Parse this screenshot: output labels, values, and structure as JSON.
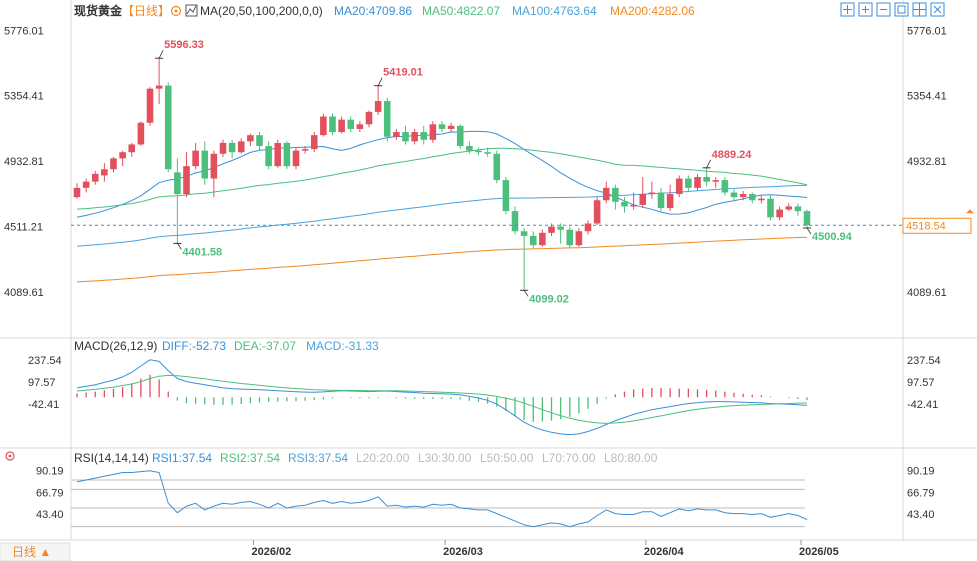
{
  "header": {
    "symbol": "现货黄金",
    "period_bracket": "【日线】",
    "ma_label": "MA(20,50,100,200,0,0)",
    "ma_values": [
      {
        "name": "MA20",
        "text": "MA20:4709.86",
        "color": "#3a8fd6"
      },
      {
        "name": "MA50",
        "text": "MA50:4822.07",
        "color": "#4cbf7d"
      },
      {
        "name": "MA100",
        "text": "MA100:4763.64",
        "color": "#4aa3df"
      },
      {
        "name": "MA200",
        "text": "MA200:4282.06",
        "color": "#f08a24"
      }
    ],
    "toolbar_icons": [
      "move-icon",
      "zoom-in-icon",
      "zoom-out-icon",
      "reset-icon",
      "settings-icon",
      "close-icon"
    ]
  },
  "colors": {
    "up": "#e2505c",
    "down": "#4cbf7d",
    "ma20": "#3a8fd6",
    "ma50": "#4cbf7d",
    "ma100": "#4aa3df",
    "ma200": "#f08a24",
    "diff": "#3a8fd6",
    "dea": "#4cbf7d",
    "price_tag": "#f08a24"
  },
  "chart_data": {
    "type": "candlestick",
    "price_axis": {
      "ticks": [
        5776.01,
        5354.41,
        4932.81,
        4511.21,
        4089.61
      ],
      "tick_labels": [
        "5776.01",
        "5354.41",
        "4932.81",
        "4511.21",
        "4089.61"
      ],
      "range": [
        3830,
        5830
      ]
    },
    "x_axis": {
      "labels": [
        "2026/02",
        "2026/03",
        "2026/04",
        "2026/05"
      ]
    },
    "current_price": 4518.54,
    "current_price_label": "4518.54",
    "annotations": [
      {
        "label": "5596.33",
        "value": 5596.33,
        "color": "#e2505c"
      },
      {
        "label": "4401.58",
        "value": 4401.58,
        "color": "#4cbf7d"
      },
      {
        "label": "5419.01",
        "value": 5419.01,
        "color": "#e2505c"
      },
      {
        "label": "4099.02",
        "value": 4099.02,
        "color": "#4cbf7d"
      },
      {
        "label": "4889.24",
        "value": 4889.24,
        "color": "#e2505c"
      },
      {
        "label": "4500.94",
        "value": 4500.94,
        "color": "#4cbf7d"
      }
    ],
    "candles": [
      [
        4700,
        4760,
        4690,
        4790
      ],
      [
        4760,
        4800,
        4730,
        4820
      ],
      [
        4800,
        4850,
        4780,
        4870
      ],
      [
        4840,
        4880,
        4800,
        4920
      ],
      [
        4880,
        4950,
        4860,
        4960
      ],
      [
        4950,
        4990,
        4900,
        5000
      ],
      [
        4990,
        5040,
        4960,
        5050
      ],
      [
        5040,
        5180,
        5030,
        5190
      ],
      [
        5180,
        5400,
        5160,
        5410
      ],
      [
        5400,
        5420,
        5300,
        5596.33
      ],
      [
        5420,
        4880,
        4860,
        5440
      ],
      [
        4860,
        4720,
        4401.58,
        4950
      ],
      [
        4720,
        4900,
        4700,
        4990
      ],
      [
        4900,
        5000,
        4880,
        5050
      ],
      [
        5000,
        4820,
        4780,
        5060
      ],
      [
        4820,
        4980,
        4700,
        5000
      ],
      [
        4980,
        5050,
        4960,
        5070
      ],
      [
        5050,
        4990,
        4950,
        5070
      ],
      [
        4990,
        5060,
        4980,
        5080
      ],
      [
        5060,
        5100,
        5030,
        5110
      ],
      [
        5100,
        5030,
        5000,
        5120
      ],
      [
        5030,
        4900,
        4880,
        5060
      ],
      [
        4900,
        5050,
        4890,
        5070
      ],
      [
        5050,
        4900,
        4880,
        5060
      ],
      [
        4900,
        5000,
        4880,
        5020
      ],
      [
        5000,
        5010,
        4980,
        5030
      ],
      [
        5010,
        5100,
        4990,
        5120
      ],
      [
        5100,
        5220,
        5090,
        5240
      ],
      [
        5220,
        5120,
        5100,
        5240
      ],
      [
        5120,
        5200,
        5110,
        5220
      ],
      [
        5200,
        5140,
        5120,
        5220
      ],
      [
        5140,
        5170,
        5120,
        5190
      ],
      [
        5170,
        5250,
        5150,
        5260
      ],
      [
        5250,
        5320,
        5230,
        5419.01
      ],
      [
        5320,
        5090,
        5060,
        5340
      ],
      [
        5090,
        5120,
        5070,
        5140
      ],
      [
        5120,
        5060,
        5040,
        5160
      ],
      [
        5060,
        5120,
        5040,
        5140
      ],
      [
        5120,
        5070,
        5040,
        5160
      ],
      [
        5070,
        5170,
        5050,
        5190
      ],
      [
        5170,
        5140,
        5120,
        5190
      ],
      [
        5140,
        5160,
        5120,
        5180
      ],
      [
        5160,
        5030,
        5010,
        5170
      ],
      [
        5030,
        5000,
        4980,
        5060
      ],
      [
        5000,
        4990,
        4970,
        5020
      ],
      [
        4990,
        4980,
        4960,
        5020
      ],
      [
        4980,
        4810,
        4790,
        5000
      ],
      [
        4810,
        4610,
        4590,
        4830
      ],
      [
        4610,
        4480,
        4460,
        4640
      ],
      [
        4480,
        4450,
        4099.02,
        4500
      ],
      [
        4450,
        4390,
        4370,
        4480
      ],
      [
        4390,
        4470,
        4380,
        4490
      ],
      [
        4470,
        4510,
        4450,
        4530
      ],
      [
        4510,
        4490,
        4400,
        4530
      ],
      [
        4490,
        4390,
        4370,
        4510
      ],
      [
        4390,
        4480,
        4380,
        4500
      ],
      [
        4480,
        4530,
        4460,
        4550
      ],
      [
        4530,
        4680,
        4520,
        4700
      ],
      [
        4680,
        4760,
        4660,
        4800
      ],
      [
        4760,
        4670,
        4620,
        4780
      ],
      [
        4670,
        4640,
        4600,
        4700
      ],
      [
        4640,
        4650,
        4620,
        4730
      ],
      [
        4650,
        4720,
        4630,
        4830
      ],
      [
        4720,
        4730,
        4690,
        4800
      ],
      [
        4730,
        4630,
        4610,
        4760
      ],
      [
        4630,
        4720,
        4610,
        4780
      ],
      [
        4720,
        4820,
        4700,
        4840
      ],
      [
        4820,
        4760,
        4740,
        4840
      ],
      [
        4760,
        4830,
        4740,
        4850
      ],
      [
        4830,
        4800,
        4770,
        4889.24
      ],
      [
        4800,
        4810,
        4760,
        4830
      ],
      [
        4810,
        4730,
        4710,
        4830
      ],
      [
        4730,
        4700,
        4680,
        4750
      ],
      [
        4700,
        4720,
        4680,
        4740
      ],
      [
        4720,
        4680,
        4660,
        4730
      ],
      [
        4680,
        4690,
        4660,
        4710
      ],
      [
        4690,
        4570,
        4550,
        4710
      ],
      [
        4570,
        4620,
        4550,
        4640
      ],
      [
        4620,
        4640,
        4610,
        4660
      ],
      [
        4640,
        4610,
        4580,
        4660
      ],
      [
        4610,
        4518.54,
        4500.94,
        4620
      ]
    ],
    "macd": {
      "label": "MACD(26,12,9)",
      "diff_label": "DIFF:-52.73",
      "dea_label": "DEA:-37.07",
      "macd_label": "MACD:-31.33",
      "ticks": [
        237.54,
        97.57,
        -42.41
      ],
      "tick_labels": [
        "237.54",
        "97.57",
        "-42.41"
      ],
      "range": [
        -300,
        290
      ],
      "diff": [
        60,
        70,
        80,
        95,
        110,
        130,
        160,
        200,
        240,
        230,
        170,
        120,
        100,
        90,
        80,
        70,
        60,
        55,
        52,
        50,
        48,
        45,
        42,
        38,
        35,
        33,
        32,
        34,
        38,
        42,
        40,
        38,
        36,
        38,
        40,
        36,
        33,
        30,
        26,
        24,
        22,
        20,
        15,
        5,
        -5,
        -20,
        -45,
        -80,
        -120,
        -160,
        -190,
        -210,
        -225,
        -235,
        -240,
        -235,
        -220,
        -200,
        -175,
        -150,
        -130,
        -110,
        -95,
        -80,
        -70,
        -60,
        -50,
        -40,
        -35,
        -30,
        -28,
        -28,
        -30,
        -32,
        -34,
        -36,
        -40,
        -43,
        -45,
        -48,
        -52.73
      ],
      "dea": [
        40,
        45,
        50,
        58,
        65,
        75,
        85,
        100,
        120,
        135,
        140,
        138,
        132,
        125,
        118,
        110,
        102,
        95,
        88,
        82,
        76,
        70,
        65,
        60,
        56,
        52,
        48,
        46,
        44,
        44,
        44,
        43,
        42,
        42,
        42,
        41,
        40,
        38,
        36,
        34,
        32,
        30,
        27,
        24,
        20,
        14,
        5,
        -6,
        -20,
        -38,
        -58,
        -80,
        -100,
        -118,
        -135,
        -148,
        -158,
        -165,
        -168,
        -165,
        -160,
        -152,
        -142,
        -130,
        -120,
        -108,
        -96,
        -86,
        -77,
        -70,
        -64,
        -58,
        -54,
        -51,
        -48,
        -46,
        -44,
        -42,
        -40,
        -38,
        -37.07
      ]
    },
    "rsi": {
      "label": "RSI(14,14,14)",
      "rsi1_label": "RSI1:37.54",
      "rsi2_label": "RSI2:37.54",
      "rsi3_label": "RSI3:37.54",
      "levels_label": [
        "L20:20.00",
        "L30:30.00",
        "L50:50.00",
        "L70:70.00",
        "L80:80.00"
      ],
      "ticks": [
        90.19,
        66.79,
        43.4
      ],
      "tick_labels": [
        "90.19",
        "66.79",
        "43.40"
      ],
      "range": [
        20,
        95
      ],
      "values": [
        78,
        80,
        82,
        84,
        86,
        88,
        88,
        89,
        90,
        88,
        55,
        45,
        52,
        55,
        48,
        52,
        55,
        54,
        56,
        57,
        54,
        50,
        55,
        50,
        52,
        53,
        56,
        58,
        55,
        57,
        55,
        56,
        58,
        62,
        52,
        53,
        51,
        52,
        51,
        54,
        53,
        54,
        50,
        49,
        48,
        48,
        44,
        40,
        36,
        32,
        30,
        32,
        34,
        33,
        30,
        33,
        35,
        42,
        48,
        44,
        43,
        43,
        46,
        46,
        41,
        45,
        49,
        47,
        49,
        48,
        48,
        45,
        44,
        44,
        43,
        44,
        40,
        42,
        44,
        42,
        37.54
      ]
    }
  },
  "footer": {
    "period_button": "日线 ▲"
  }
}
